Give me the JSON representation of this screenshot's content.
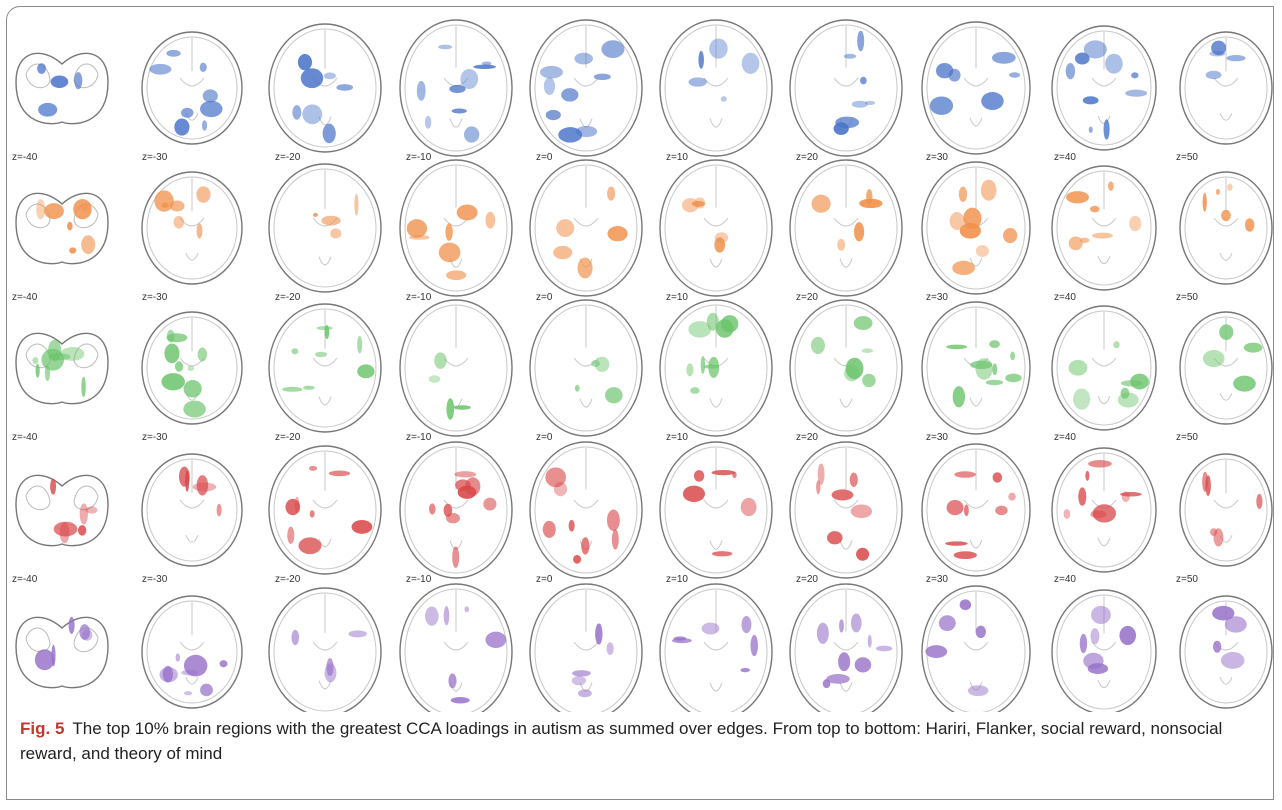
{
  "figure": {
    "slices": [
      "z=-40",
      "z=-30",
      "z=-20",
      "z=-10",
      "z=0",
      "z=10",
      "z=20",
      "z=30",
      "z=40",
      "z=50"
    ],
    "row_colors": [
      "#4a74c9",
      "#f0904a",
      "#6cc46c",
      "#d9484a",
      "#9670c8"
    ],
    "caption_label": "Fig. 5",
    "caption_text": "The top 10% brain regions with the greatest CCA loadings in autism as summed over edges. From top to bottom: Hariri, Flanker, social reward, nonsocial reward, and theory of mind"
  }
}
